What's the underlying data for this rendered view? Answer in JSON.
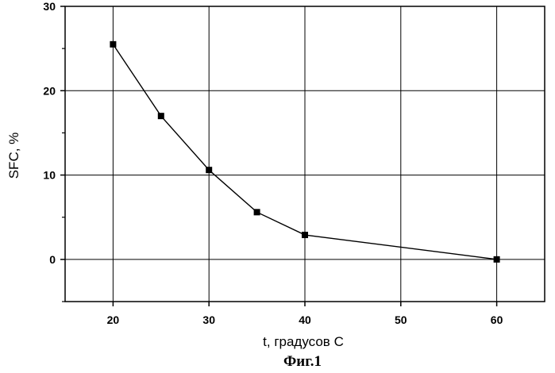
{
  "chart_data": {
    "type": "line",
    "xlabel": "t, градусов С",
    "ylabel": "SFC, %",
    "caption": "Фиг.1",
    "xlim": [
      15,
      65
    ],
    "ylim": [
      -5,
      30
    ],
    "x_ticks": [
      20,
      30,
      40,
      50,
      60
    ],
    "y_ticks": [
      0,
      10,
      20,
      30
    ],
    "grid": true,
    "legend": "none",
    "series": [
      {
        "x": [
          20,
          25,
          30,
          35,
          40,
          60
        ],
        "y": [
          25.5,
          17.0,
          10.6,
          5.6,
          2.9,
          0.0
        ]
      }
    ],
    "colors": {
      "line": "#000000",
      "marker": "#000000",
      "grid": "#000000"
    },
    "marker": "square"
  }
}
